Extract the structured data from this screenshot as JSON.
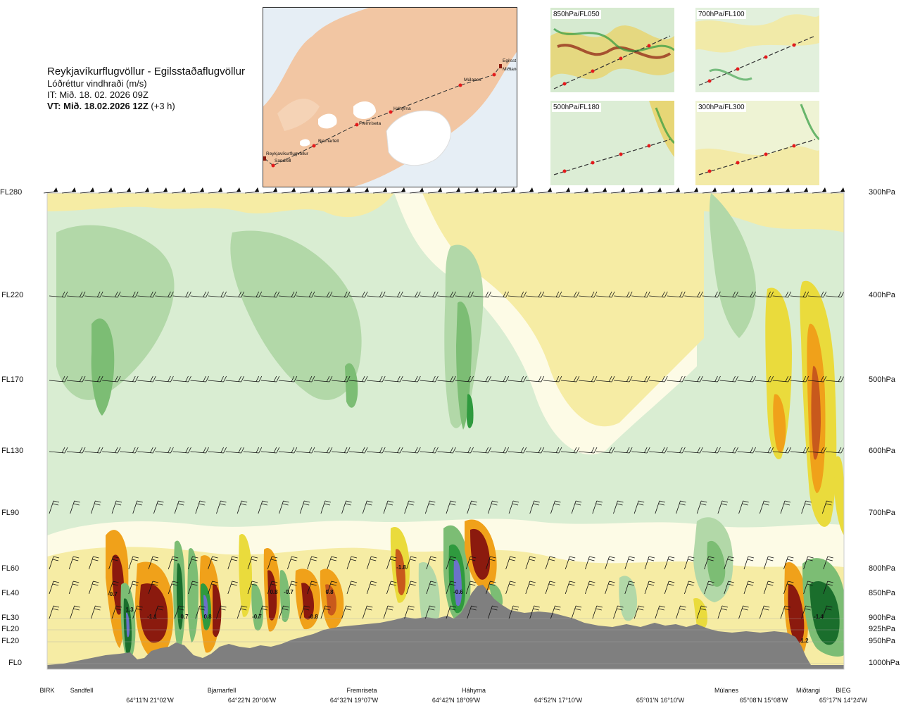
{
  "header": {
    "route": "Reykjavíkurflugvöllur - Egilsstaðaflugvöllur",
    "variable": "Lóðréttur vindhraði (m/s)",
    "issue_time": "IT: Mið. 18. 02. 2026 09Z",
    "valid_time_bold": "VT: Mið. 18.02.2026 12Z",
    "valid_offset": " (+3 h)"
  },
  "map": {
    "places": [
      "Reykjavíkurflugvöllur",
      "Sandfell",
      "Bjarnarfell",
      "Fremriseta",
      "Háhyrna",
      "Múlanes",
      "Miðtangi",
      "Egilsst"
    ],
    "colors": {
      "sea": "#e6eef5",
      "land": "#f2c6a3",
      "ice": "#ffffff",
      "route": "#333333",
      "marker": "#e41a1c"
    }
  },
  "mini_maps": [
    {
      "label": "850hPa/FL050"
    },
    {
      "label": "700hPa/FL100"
    },
    {
      "label": "500hPa/FL180"
    },
    {
      "label": "300hPa/FL300"
    }
  ],
  "chart_data": {
    "type": "heatmap",
    "title": "",
    "variable": "Lóðréttur vindhraði (m/s)",
    "left_axis_levels": [
      "FL280",
      "FL220",
      "FL170",
      "FL130",
      "FL90",
      "FL60",
      "FL40",
      "FL30",
      "FL20",
      "FL20",
      "FL0"
    ],
    "right_axis_levels": [
      "300hPa",
      "400hPa",
      "500hPa",
      "600hPa",
      "700hPa",
      "800hPa",
      "850hPa",
      "900hPa",
      "925hPa",
      "950hPa",
      "1000hPa"
    ],
    "x_places": [
      "BIRK",
      "Sandfell",
      "Bjarnarfell",
      "Fremriseta",
      "Háhyrna",
      "Múlanes",
      "Miðtangi",
      "BIEG"
    ],
    "x_coords": [
      "64°11'N 21°02'W",
      "64°22'N 20°06'W",
      "64°32'N 19°07'W",
      "64°42'N 18°09'W",
      "64°52'N 17°10'W",
      "65°01'N 16°10'W",
      "65°08'N 15°08'W",
      "65°17'N 14°24'W"
    ],
    "annotations": [
      "-0.7",
      "1.3",
      "-1.1",
      "0.7",
      "0.8",
      "-0.7",
      "0.8",
      "-0.7",
      "0.8",
      "-0.8",
      "-1.8",
      "-0.6",
      "1.2",
      "-1.4",
      "0.8"
    ],
    "colors": {
      "strong_down": "#8b1a0e",
      "down_3": "#c8591c",
      "down_2": "#f0a11a",
      "down_1": "#eadb3c",
      "weak_down": "#f6eca4",
      "neutral": "#fdfbe6",
      "weak_up": "#d9edd2",
      "up_1": "#b2d8a8",
      "up_2": "#7cbd74",
      "up_3": "#2f9a3e",
      "strong_up": "#1a6e2c",
      "extreme_up": "#6b72c9",
      "terrain": "#7f7f7f"
    }
  }
}
